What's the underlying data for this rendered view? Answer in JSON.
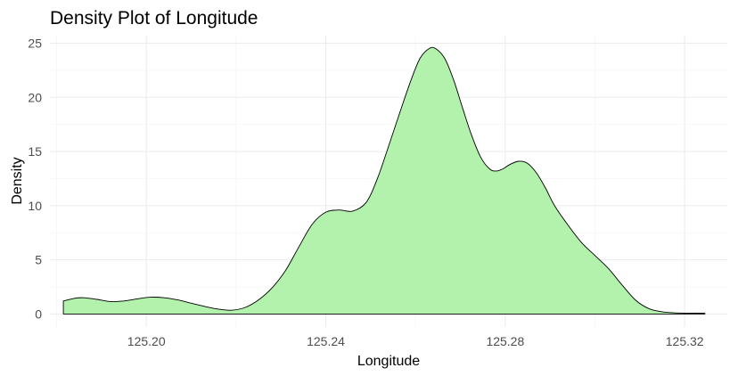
{
  "chart_data": {
    "type": "area",
    "title": "Density Plot of Longitude",
    "xlabel": "Longitude",
    "ylabel": "Density",
    "xlim": [
      125.1785,
      125.3295
    ],
    "ylim": [
      -1.2,
      25.7
    ],
    "x_ticks": [
      125.2,
      125.24,
      125.28,
      125.32
    ],
    "x_tick_labels": [
      "125.20",
      "125.24",
      "125.28",
      "125.32"
    ],
    "y_ticks": [
      0,
      5,
      10,
      15,
      20,
      25
    ],
    "y_tick_labels": [
      "0",
      "5",
      "10",
      "15",
      "20",
      "25"
    ],
    "grid": true,
    "fill_color": "#b2f2ac",
    "line_color": "#000000",
    "series": [
      {
        "x": [
          125.1815,
          125.184,
          125.186,
          125.189,
          125.192,
          125.195,
          125.198,
          125.201,
          125.204,
          125.207,
          125.21,
          125.213,
          125.216,
          125.219,
          125.222,
          125.225,
          125.228,
          125.231,
          125.234,
          125.237,
          125.24,
          125.243,
          125.246,
          125.249,
          125.2515,
          125.254,
          125.2565,
          125.259,
          125.261,
          125.263,
          125.2645,
          125.2665,
          125.2685,
          125.2705,
          125.2725,
          125.2745,
          125.2765,
          125.278,
          125.2795,
          125.281,
          125.283,
          125.285,
          125.287,
          125.289,
          125.291,
          125.294,
          125.297,
          125.3,
          125.303,
          125.306,
          125.309,
          125.312,
          125.315,
          125.318,
          125.321,
          125.3245
        ],
        "y": [
          1.2,
          1.45,
          1.5,
          1.35,
          1.15,
          1.2,
          1.4,
          1.55,
          1.5,
          1.3,
          1.0,
          0.7,
          0.45,
          0.35,
          0.6,
          1.3,
          2.4,
          4.0,
          6.2,
          8.3,
          9.4,
          9.6,
          9.5,
          10.3,
          12.5,
          15.5,
          18.6,
          21.6,
          23.6,
          24.5,
          24.5,
          23.6,
          21.6,
          19.0,
          16.5,
          14.5,
          13.4,
          13.2,
          13.4,
          13.8,
          14.1,
          13.9,
          13.0,
          11.6,
          10.0,
          8.2,
          6.6,
          5.4,
          4.2,
          2.7,
          1.3,
          0.5,
          0.2,
          0.1,
          0.08,
          0.07
        ]
      }
    ]
  }
}
